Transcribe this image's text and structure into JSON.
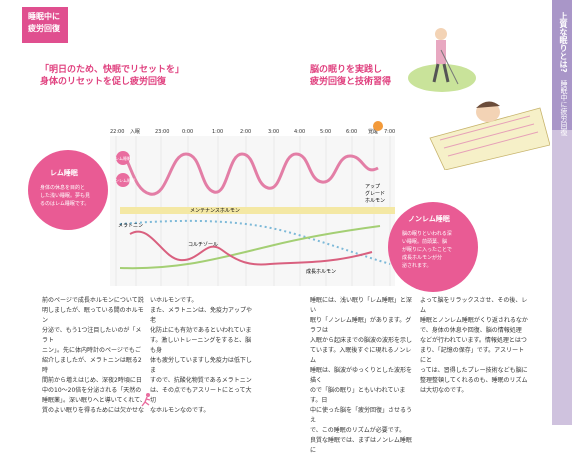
{
  "tag": {
    "line1": "睡眠中に",
    "line2": "疲労回復"
  },
  "heading_left": {
    "line1": "「明日のため、快眠でリセットを」",
    "line2": "身体のリセットを促し疲労回復"
  },
  "heading_right": {
    "line1": "脳の眠りを実践し",
    "line2": "疲労回復と技術習得"
  },
  "sidebar": {
    "title": "上質な眠りとは?",
    "subtitle": "睡眠中に疲労回復"
  },
  "chart_data": {
    "type": "line",
    "x": [
      "22:00",
      "入眠",
      "23:00",
      "0:00",
      "1:00",
      "2:00",
      "3:00",
      "4:00",
      "5:00",
      "6:00",
      "覚醒",
      "7:00"
    ],
    "labels": {
      "rem": "レム睡眠",
      "nonrem": "ノンレム睡眠",
      "maintenance": "メンテナンスホルモン",
      "melatonin": "メラトニン",
      "cortisol": "コルチゾール",
      "growth": "成長ホルモン",
      "upgrade_line1": "アップ",
      "upgrade_line2": "グレード",
      "upgrade_line3": "ホルモン"
    },
    "colors": {
      "rem": "#e37ea6",
      "maintenance": "#f4e8a4",
      "melatonin": "#7db9d8",
      "cortisol": "#a4cf74",
      "growth": "#d9607f"
    }
  },
  "callout_left": {
    "title": "レム睡眠",
    "text": [
      "身体の休息を目的と",
      "した浅い睡眠。夢も見",
      "るのはレム睡眠です。"
    ]
  },
  "callout_right": {
    "title": "ノンレム睡眠",
    "text": [
      "脳の眠りといわれる深",
      "い睡眠。前頭葉、脳",
      "が眠りに入ったことで",
      "成長ホルモンが分",
      "泌されます。"
    ]
  },
  "columns": [
    [
      "前のページで成長ホルモンについて説",
      "明しましたが、眠っている間のホルモン",
      "分泌で、もう1つ注目したいのが「メラト",
      "ニン」。先に体内時計のページでもご",
      "紹介しましたが、メラトニンは眠る2時",
      "間前から増えはじめ、深夜2時頃に日",
      "中の10〜20倍を分泌される「天然の",
      "睡眠薬」。深い眠りへと導いてくれて、",
      "質のよい眠りを得るためには欠かせな"
    ],
    [
      "いホルモンです。",
      "また、メラトニンは、免疫力アップや老",
      "化防止にも有効であるといわれていま",
      "す。激しいトレーニングをすると、脳も身",
      "体も疲労していますし免疫力は低下しま",
      "すので、抗酸化物質であるメラトニン",
      "は、その点でもアスリートにとって大切",
      "なホルモンなのです。"
    ],
    [
      "睡眠には、浅い眠り「レム睡眠」と深い",
      "眠り「ノンレム睡眠」があります。グラフは",
      "入眠から起床までの脳波の波形を示し",
      "ています。入眠後すぐに現れるノンレム",
      "睡眠は、脳波がゆっくりとした波形を描く",
      "ので「脳の眠り」ともいわれています。日",
      "中に使った脳を「疲労回復」させるうえ",
      "で、この睡眠のリズムが必要です。",
      "良質な睡眠では、まずはノンレム睡眠に"
    ],
    [
      "よって脳をリラックスさせ、その後、レム",
      "睡眠とノンレム睡眠がくり返されるなか",
      "で、身体の休息や回復、脳の情報処理",
      "などが行われています。情報処理とはつ",
      "まり、「記憶の保存」です。アスリートにと",
      "っては、習得したプレー技術なども脳に",
      "整理整頓してくれるのも、睡眠のリズム",
      "は大切なのです。"
    ]
  ]
}
